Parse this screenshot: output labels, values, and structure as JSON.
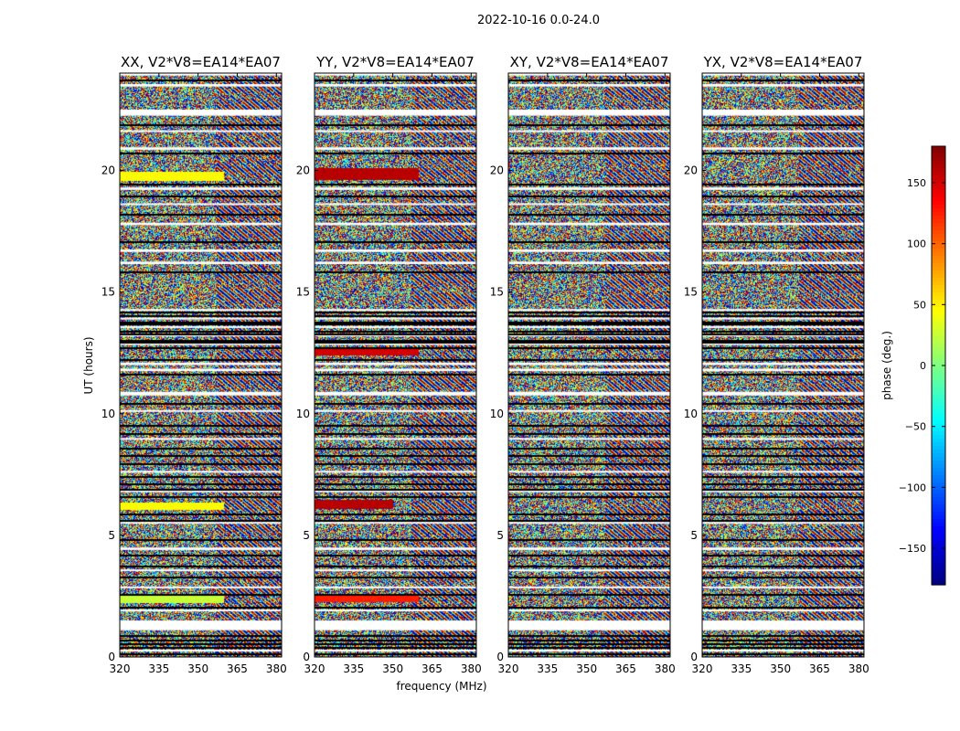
{
  "figure_title": "2022-10-16 0.0-24.0",
  "chart_data": {
    "type": "heatmap",
    "suptitle": "2022-10-16 0.0-24.0",
    "xlabel": "frequency (MHz)",
    "ylabel": "UT (hours)",
    "xlim": [
      320,
      382
    ],
    "ylim": [
      0,
      24
    ],
    "xticks": [
      320,
      335,
      350,
      365,
      380
    ],
    "yticks": [
      0,
      5,
      10,
      15,
      20
    ],
    "colorbar": {
      "label": "phase (deg.)",
      "range": [
        -180,
        180
      ],
      "ticks": [
        -150,
        -100,
        -50,
        0,
        50,
        100,
        150
      ],
      "colormap": "jet"
    },
    "panels": [
      {
        "title": "XX, V2*V8=EA14*EA07",
        "correlation": "XX",
        "bands": [
          {
            "t0": 19.55,
            "t1": 19.95,
            "f0": 320,
            "f1": 360,
            "phase": 45
          },
          {
            "t0": 6.05,
            "t1": 6.35,
            "f0": 320,
            "f1": 360,
            "phase": 45
          },
          {
            "t0": 2.2,
            "t1": 2.5,
            "f0": 320,
            "f1": 360,
            "phase": 25
          }
        ]
      },
      {
        "title": "YY, V2*V8=EA14*EA07",
        "correlation": "YY",
        "bands": [
          {
            "t0": 19.6,
            "t1": 20.1,
            "f0": 320,
            "f1": 360,
            "phase": 160
          },
          {
            "t0": 12.4,
            "t1": 12.7,
            "f0": 320,
            "f1": 360,
            "phase": 150
          },
          {
            "t0": 6.1,
            "t1": 6.45,
            "f0": 320,
            "f1": 350,
            "phase": 160
          },
          {
            "t0": 2.25,
            "t1": 2.55,
            "f0": 320,
            "f1": 360,
            "phase": 125
          }
        ]
      },
      {
        "title": "XY, V2*V8=EA14*EA07",
        "correlation": "XY",
        "bands": []
      },
      {
        "title": "YX, V2*V8=EA14*EA07",
        "correlation": "YX",
        "bands": []
      }
    ],
    "flagged_gaps_ut_hours": [
      [
        23.9,
        24.0
      ],
      [
        23.45,
        23.55
      ],
      [
        22.25,
        22.5
      ],
      [
        21.6,
        21.65
      ],
      [
        20.85,
        20.95
      ],
      [
        19.2,
        19.3
      ],
      [
        18.6,
        18.65
      ],
      [
        17.75,
        17.85
      ],
      [
        16.65,
        16.75
      ],
      [
        16.15,
        16.25
      ],
      [
        14.25,
        14.3
      ],
      [
        13.9,
        13.95
      ],
      [
        13.55,
        13.6
      ],
      [
        13.2,
        13.25
      ],
      [
        12.85,
        12.9
      ],
      [
        12.0,
        12.1
      ],
      [
        11.75,
        11.85
      ],
      [
        10.75,
        10.9
      ],
      [
        10.1,
        10.15
      ],
      [
        8.95,
        9.0
      ],
      [
        7.6,
        7.65
      ],
      [
        6.8,
        6.85
      ],
      [
        5.5,
        5.55
      ],
      [
        4.4,
        4.5
      ],
      [
        3.55,
        3.6
      ],
      [
        2.85,
        2.9
      ],
      [
        1.9,
        1.95
      ],
      [
        1.1,
        1.5
      ],
      [
        0.25,
        0.3
      ]
    ],
    "no_data_lines_ut_hours": [
      23.75,
      21.9,
      20.75,
      19.45,
      18.95,
      18.2,
      17.1,
      15.85,
      14.2,
      14.05,
      13.8,
      13.7,
      13.4,
      13.3,
      13.05,
      12.95,
      12.75,
      12.25,
      11.65,
      10.45,
      9.55,
      9.2,
      8.6,
      8.3,
      7.95,
      7.45,
      7.15,
      6.9,
      6.6,
      5.9,
      5.65,
      4.85,
      4.2,
      3.75,
      3.3,
      2.6,
      2.05,
      0.9,
      0.7,
      0.55,
      0.4,
      0.15
    ]
  }
}
